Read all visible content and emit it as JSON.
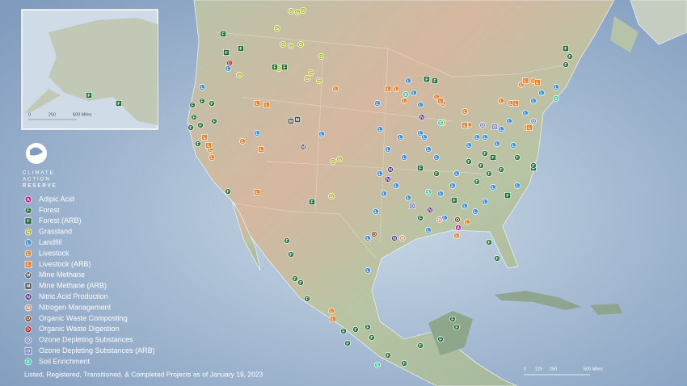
{
  "logo": {
    "lines": [
      "CLIMATE",
      "ACTION",
      "RESERVE"
    ]
  },
  "legend": [
    {
      "label": "Adipic Acid",
      "symbol": "A",
      "shape": "circle",
      "color": "#c2188b"
    },
    {
      "label": "Forest",
      "symbol": "F",
      "shape": "circle",
      "color": "#1f6b34"
    },
    {
      "label": "Forest (ARB)",
      "symbol": "F",
      "shape": "square",
      "color": "#1f6b34"
    },
    {
      "label": "Grassland",
      "symbol": "G",
      "shape": "circle",
      "color": "#a9b824"
    },
    {
      "label": "Landfill",
      "symbol": "L",
      "shape": "circle",
      "color": "#3b8fdb"
    },
    {
      "label": "Livestock",
      "symbol": "L",
      "shape": "circle",
      "color": "#e8832a"
    },
    {
      "label": "Livestock (ARB)",
      "symbol": "L",
      "shape": "square",
      "color": "#e8832a"
    },
    {
      "label": "Mine Methane",
      "symbol": "M",
      "shape": "circle",
      "color": "#4a4a4a"
    },
    {
      "label": "Mine Methane (ARB)",
      "symbol": "M",
      "shape": "square",
      "color": "#4a4a4a"
    },
    {
      "label": "Nitric Acid Production",
      "symbol": "N",
      "shape": "circle",
      "color": "#4b2c7c"
    },
    {
      "label": "Nitrogen Management",
      "symbol": "N",
      "shape": "circle",
      "color": "#d4917a"
    },
    {
      "label": "Organic Waste Composting",
      "symbol": "O",
      "shape": "circle",
      "color": "#7a4b2c"
    },
    {
      "label": "Organic Waste Digestion",
      "symbol": "D",
      "shape": "circle",
      "color": "#b31c1c"
    },
    {
      "label": "Ozone Depleting Substances",
      "symbol": "O",
      "shape": "circle",
      "color": "#7b86c4"
    },
    {
      "label": "Ozone Depleting Substances (ARB)",
      "symbol": "O",
      "shape": "square",
      "color": "#7b86c4"
    },
    {
      "label": "Soil Enrichment",
      "symbol": "S",
      "shape": "circle",
      "color": "#3cc9a1"
    }
  ],
  "caption": "Listed, Registered, Transitioned, & Completed Projects as of January 19, 2023",
  "inset_scale": [
    "0",
    "250",
    "500 Miles"
  ],
  "main_scale": [
    "0",
    "125",
    "250",
    "500 Miles"
  ]
}
